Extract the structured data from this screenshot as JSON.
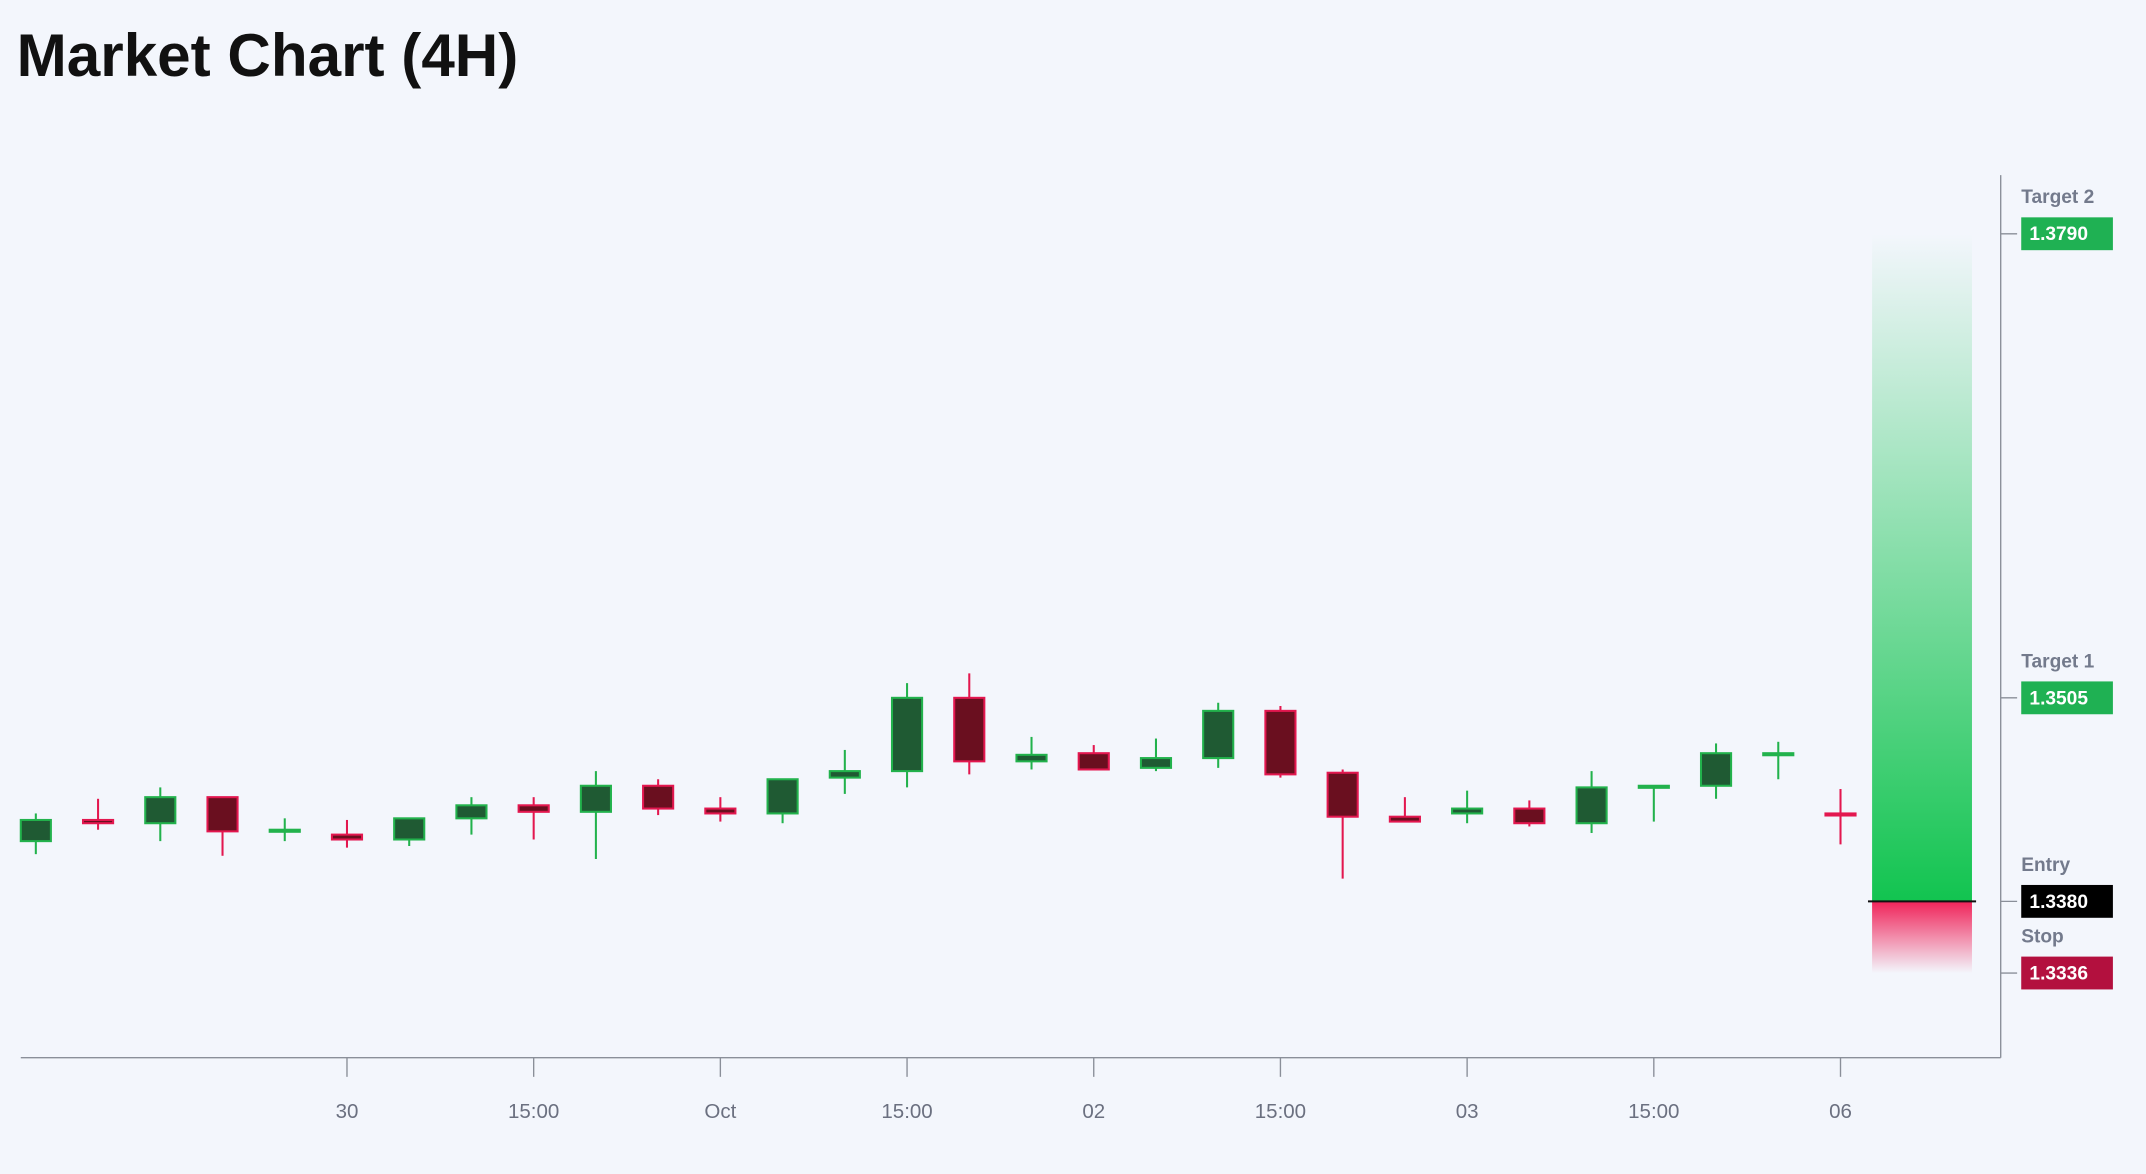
{
  "chart_data": {
    "type": "candlestick",
    "title": "Market Chart (4H)",
    "categories": [
      null,
      null,
      null,
      null,
      null,
      "30",
      null,
      null,
      "15:00",
      null,
      null,
      "Oct",
      null,
      null,
      "15:00",
      null,
      null,
      "02",
      null,
      null,
      "15:00",
      null,
      null,
      "03",
      null,
      null,
      "15:00",
      null,
      null,
      "06"
    ],
    "open": [
      1.3417,
      1.343,
      1.3428,
      1.3444,
      1.3423,
      1.3421,
      1.3418,
      1.3431,
      1.3439,
      1.3435,
      1.3451,
      1.3437,
      1.3434,
      1.3456,
      1.346,
      1.3505,
      1.3466,
      1.3471,
      1.3462,
      1.3468,
      1.3497,
      1.3459,
      1.3432,
      1.3434,
      1.3437,
      1.3428,
      1.345,
      1.3451,
      1.347,
      1.3434
    ],
    "high": [
      1.3434,
      1.3443,
      1.345,
      1.3444,
      1.3431,
      1.343,
      1.3431,
      1.3444,
      1.3444,
      1.346,
      1.3455,
      1.3444,
      1.3455,
      1.3473,
      1.3514,
      1.352,
      1.3481,
      1.3476,
      1.348,
      1.3502,
      1.35,
      1.3461,
      1.3444,
      1.3448,
      1.3442,
      1.346,
      1.3451,
      1.3477,
      1.3478,
      1.3449
    ],
    "low": [
      1.3409,
      1.3424,
      1.3417,
      1.3408,
      1.3417,
      1.3413,
      1.3414,
      1.3421,
      1.3418,
      1.3406,
      1.3433,
      1.3429,
      1.3428,
      1.3446,
      1.345,
      1.3458,
      1.3461,
      1.3461,
      1.346,
      1.3462,
      1.3456,
      1.3394,
      1.3429,
      1.3428,
      1.3426,
      1.3422,
      1.3429,
      1.3443,
      1.3455,
      1.3415
    ],
    "close": [
      1.343,
      1.3428,
      1.3444,
      1.3423,
      1.3424,
      1.3418,
      1.3431,
      1.3439,
      1.3435,
      1.3451,
      1.3437,
      1.3434,
      1.3455,
      1.346,
      1.3505,
      1.3466,
      1.347,
      1.3461,
      1.3468,
      1.3497,
      1.3458,
      1.3432,
      1.3429,
      1.3437,
      1.3428,
      1.345,
      1.3451,
      1.3471,
      1.3471,
      1.3433
    ],
    "up_color": "#22b24c",
    "up_fill": "#1f5a33",
    "down_color": "#e3174f",
    "down_fill": "#6a0f1f",
    "ylim": [
      1.3284,
      1.3826
    ],
    "levels": [
      {
        "name": "Target 2",
        "value": 1.379,
        "value_label": "1.3790",
        "color": "#1fb153"
      },
      {
        "name": "Target 1",
        "value": 1.3505,
        "value_label": "1.3505",
        "color": "#1fb153"
      },
      {
        "name": "Entry",
        "value": 1.338,
        "value_label": "1.3380",
        "color": "#000000"
      },
      {
        "name": "Stop",
        "value": 1.3336,
        "value_label": "1.3336",
        "color": "#b3103e"
      }
    ]
  }
}
